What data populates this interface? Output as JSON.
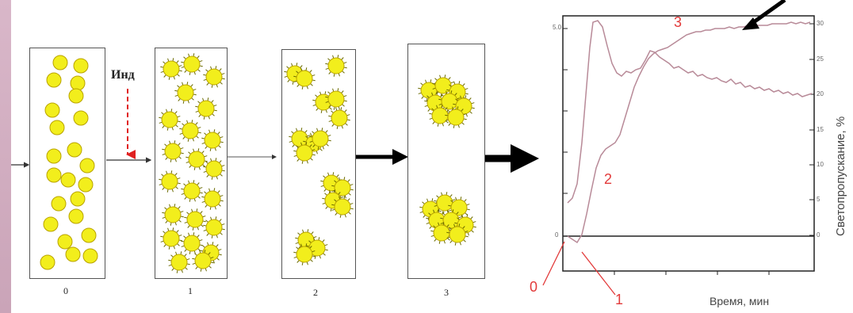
{
  "diagram": {
    "indicator_label": "Инд",
    "panels": [
      {
        "label": "0"
      },
      {
        "label": "1"
      },
      {
        "label": "2"
      },
      {
        "label": "3"
      }
    ],
    "colors": {
      "particle_fill": "#f2ee1c",
      "particle_stroke": "#b9a300",
      "indicator_arrow": "#e02020",
      "curve": "#b88a98",
      "annotation": "#e23a3a"
    }
  },
  "chart_data": {
    "type": "line",
    "xlabel": "Время, мин",
    "ylabel_right": "Светопропускание, %",
    "y_ticks_right": [
      "0",
      "5",
      "10",
      "15",
      "20",
      "25",
      "30"
    ],
    "y_ticks_left": [
      "0",
      "5.0"
    ],
    "curve_labels": [
      "0",
      "1",
      "2",
      "3"
    ],
    "ylim": [
      0,
      30
    ],
    "grid": false
  }
}
